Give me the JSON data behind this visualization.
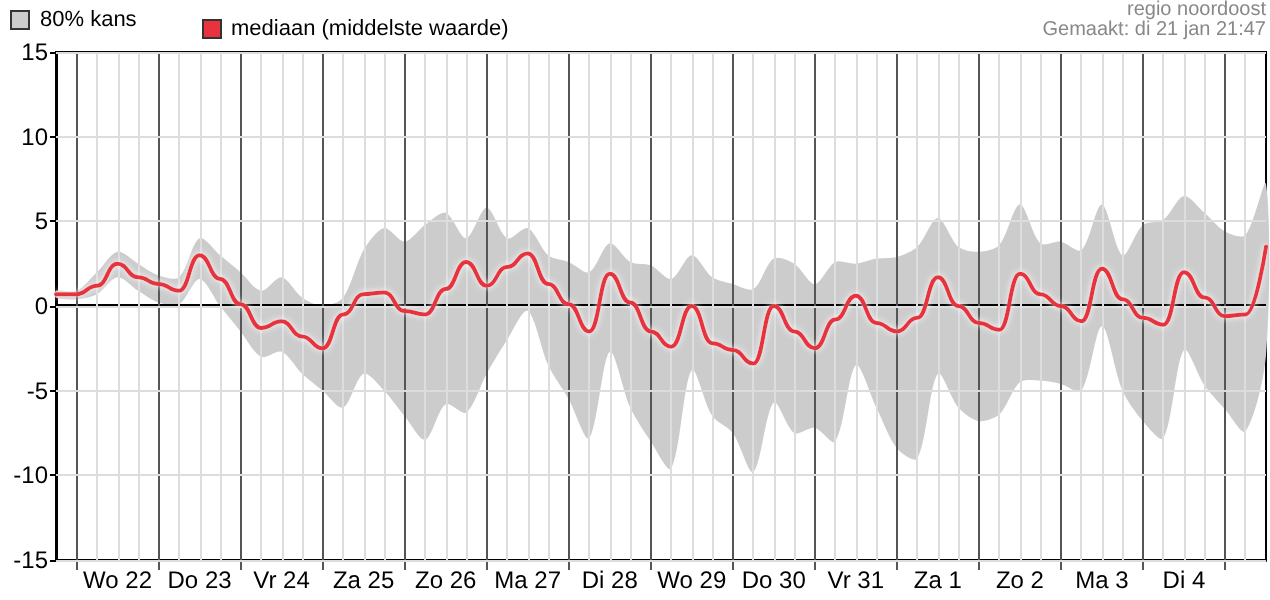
{
  "chart_data": {
    "type": "line",
    "annotations": [
      "80% kans",
      "regio noordoost",
      "Gemaakt: di 21 jan 21:47"
    ],
    "x": [
      "--01-21T18:00",
      "--01-22T00:00",
      "--01-22T06:00",
      "--01-22T12:00",
      "--01-22T18:00",
      "--01-23T00:00",
      "--01-23T06:00",
      "--01-23T12:00",
      "--01-23T18:00",
      "--01-24T00:00",
      "--01-24T06:00",
      "--01-24T12:00",
      "--01-24T18:00",
      "--01-25T00:00",
      "--01-25T06:00",
      "--01-25T12:00",
      "--01-25T18:00",
      "--01-26T00:00",
      "--01-26T06:00",
      "--01-26T12:00",
      "--01-26T18:00",
      "--01-27T00:00",
      "--01-27T06:00",
      "--01-27T12:00",
      "--01-27T18:00",
      "--01-28T00:00",
      "--01-28T06:00",
      "--01-28T12:00",
      "--01-28T18:00",
      "--01-29T00:00",
      "--01-29T06:00",
      "--01-29T12:00",
      "--01-29T18:00",
      "--01-30T00:00",
      "--01-30T06:00",
      "--01-30T12:00",
      "--01-30T18:00",
      "--01-31T00:00",
      "--01-31T06:00",
      "--01-31T12:00",
      "--01-31T18:00",
      "--02-01T00:00",
      "--02-01T06:00",
      "--02-01T12:00",
      "--02-01T18:00",
      "--02-02T00:00",
      "--02-02T06:00",
      "--02-02T12:00",
      "--02-02T18:00",
      "--02-03T00:00",
      "--02-03T06:00",
      "--02-03T12:00",
      "--02-03T18:00",
      "--02-04T00:00",
      "--02-04T06:00",
      "--02-04T12:00",
      "--02-04T18:00",
      "--02-05T00:00",
      "--02-05T06:00",
      "--02-05T12:00"
    ],
    "series": [
      {
        "name": "mediaan (middelste waarde)",
        "color": "#e8323c",
        "upper": [
          0.9,
          0.9,
          2.0,
          3.2,
          2.5,
          1.8,
          1.7,
          4.0,
          3.0,
          2.0,
          0.9,
          1.7,
          0.5,
          0.0,
          0.5,
          3.3,
          4.6,
          3.8,
          4.8,
          5.5,
          4.0,
          5.8,
          4.0,
          4.6,
          3.0,
          2.6,
          2.0,
          3.7,
          2.6,
          2.4,
          1.6,
          3.0,
          1.7,
          1.3,
          1.0,
          2.8,
          2.5,
          1.3,
          2.6,
          2.5,
          2.8,
          2.9,
          3.5,
          5.2,
          3.5,
          3.2,
          3.6,
          6.0,
          3.7,
          3.8,
          3.3,
          6.0,
          3.0,
          4.8,
          5.1,
          6.5,
          5.5,
          4.4,
          4.2,
          7.2
        ],
        "lower": [
          0.5,
          0.4,
          0.7,
          1.7,
          0.9,
          0.2,
          0.1,
          1.6,
          0.0,
          -1.5,
          -3.0,
          -2.7,
          -4.0,
          -5.0,
          -6.0,
          -4.0,
          -5.0,
          -6.5,
          -7.9,
          -5.8,
          -6.3,
          -4.0,
          -2.0,
          -0.3,
          -3.5,
          -5.5,
          -7.8,
          -2.7,
          -6.0,
          -8.0,
          -9.6,
          -3.8,
          -6.5,
          -7.5,
          -9.8,
          -5.7,
          -7.5,
          -7.2,
          -8.0,
          -3.5,
          -6.0,
          -8.4,
          -9.0,
          -4.0,
          -6.0,
          -6.8,
          -6.4,
          -4.5,
          -4.4,
          -4.6,
          -5.0,
          -1.2,
          -5.0,
          -6.8,
          -7.8,
          -2.6,
          -4.7,
          -6.1,
          -7.4,
          -2.9
        ],
        "values": [
          0.7,
          0.7,
          1.2,
          2.5,
          1.7,
          1.3,
          0.9,
          3.0,
          1.6,
          0.1,
          -1.3,
          -0.9,
          -1.8,
          -2.5,
          -0.5,
          0.7,
          0.8,
          -0.3,
          -0.5,
          1.0,
          2.6,
          1.2,
          2.3,
          3.1,
          1.3,
          0.1,
          -1.5,
          1.9,
          0.2,
          -1.5,
          -2.4,
          0.0,
          -2.2,
          -2.6,
          -3.4,
          0.0,
          -1.5,
          -2.5,
          -0.8,
          0.6,
          -1.0,
          -1.5,
          -0.7,
          1.7,
          0.0,
          -1.0,
          -1.4,
          1.9,
          0.7,
          0.0,
          -0.9,
          2.2,
          0.4,
          -0.7,
          -1.1,
          2.0,
          0.5,
          -0.6,
          -0.5,
          3.5
        ]
      }
    ],
    "xlim": [
      "--01-21T18:00",
      "--02-05T12:00"
    ],
    "xticks": [
      {
        "value": "--01-22T00:00",
        "label": null
      },
      {
        "value": "--01-22T06:00",
        "label": null
      },
      {
        "value": "--01-22T12:00",
        "label": "Wo 22"
      },
      {
        "value": "--01-22T18:00",
        "label": null
      },
      {
        "value": "--01-23T00:00",
        "label": null
      },
      {
        "value": "--01-23T06:00",
        "label": null
      },
      {
        "value": "--01-23T12:00",
        "label": "Do 23"
      },
      {
        "value": "--01-23T18:00",
        "label": null
      },
      {
        "value": "--01-24T00:00",
        "label": null
      },
      {
        "value": "--01-24T06:00",
        "label": null
      },
      {
        "value": "--01-24T12:00",
        "label": "Vr 24"
      },
      {
        "value": "--01-24T18:00",
        "label": null
      },
      {
        "value": "--01-25T00:00",
        "label": null
      },
      {
        "value": "--01-25T06:00",
        "label": null
      },
      {
        "value": "--01-25T12:00",
        "label": "Za 25"
      },
      {
        "value": "--01-25T18:00",
        "label": null
      },
      {
        "value": "--01-26T00:00",
        "label": null
      },
      {
        "value": "--01-26T06:00",
        "label": null
      },
      {
        "value": "--01-26T12:00",
        "label": "Zo 26"
      },
      {
        "value": "--01-26T18:00",
        "label": null
      },
      {
        "value": "--01-27T00:00",
        "label": null
      },
      {
        "value": "--01-27T06:00",
        "label": null
      },
      {
        "value": "--01-27T12:00",
        "label": "Ma 27"
      },
      {
        "value": "--01-27T18:00",
        "label": null
      },
      {
        "value": "--01-28T00:00",
        "label": null
      },
      {
        "value": "--01-28T06:00",
        "label": null
      },
      {
        "value": "--01-28T12:00",
        "label": "Di 28"
      },
      {
        "value": "--01-28T18:00",
        "label": null
      },
      {
        "value": "--01-29T00:00",
        "label": null
      },
      {
        "value": "--01-29T06:00",
        "label": null
      },
      {
        "value": "--01-29T12:00",
        "label": "Wo 29"
      },
      {
        "value": "--01-29T18:00",
        "label": null
      },
      {
        "value": "--01-30T00:00",
        "label": null
      },
      {
        "value": "--01-30T06:00",
        "label": null
      },
      {
        "value": "--01-30T12:00",
        "label": "Do 30"
      },
      {
        "value": "--01-30T18:00",
        "label": null
      },
      {
        "value": "--01-31T00:00",
        "label": null
      },
      {
        "value": "--01-31T06:00",
        "label": null
      },
      {
        "value": "--01-31T12:00",
        "label": "Vr 31"
      },
      {
        "value": "--01-31T18:00",
        "label": null
      },
      {
        "value": "--02-01T00:00",
        "label": null
      },
      {
        "value": "--02-01T06:00",
        "label": null
      },
      {
        "value": "--02-01T12:00",
        "label": "Za 1"
      },
      {
        "value": "--02-01T18:00",
        "label": null
      },
      {
        "value": "--02-02T00:00",
        "label": null
      },
      {
        "value": "--02-02T06:00",
        "label": null
      },
      {
        "value": "--02-02T12:00",
        "label": "Zo 2"
      },
      {
        "value": "--02-02T18:00",
        "label": null
      },
      {
        "value": "--02-03T00:00",
        "label": null
      },
      {
        "value": "--02-03T06:00",
        "label": null
      },
      {
        "value": "--02-03T12:00",
        "label": "Ma 3"
      },
      {
        "value": "--02-03T18:00",
        "label": null
      },
      {
        "value": "--02-04T00:00",
        "label": null
      },
      {
        "value": "--02-04T06:00",
        "label": null
      },
      {
        "value": "--02-04T12:00",
        "label": "Di 4"
      },
      {
        "value": "--02-04T18:00",
        "label": null
      },
      {
        "value": "--02-05T00:00",
        "label": null
      },
      {
        "value": "--02-05T06:00",
        "label": null
      }
    ],
    "ylim": [
      -15,
      15
    ],
    "yticks": [
      -15,
      -10,
      -5,
      0,
      5,
      10,
      15
    ],
    "ref_lines": [
      {
        "axis": "y",
        "value": 0,
        "color": "#000000"
      }
    ],
    "grid": true,
    "legend": "top left",
    "marker": "none",
    "line_style": "solid"
  }
}
